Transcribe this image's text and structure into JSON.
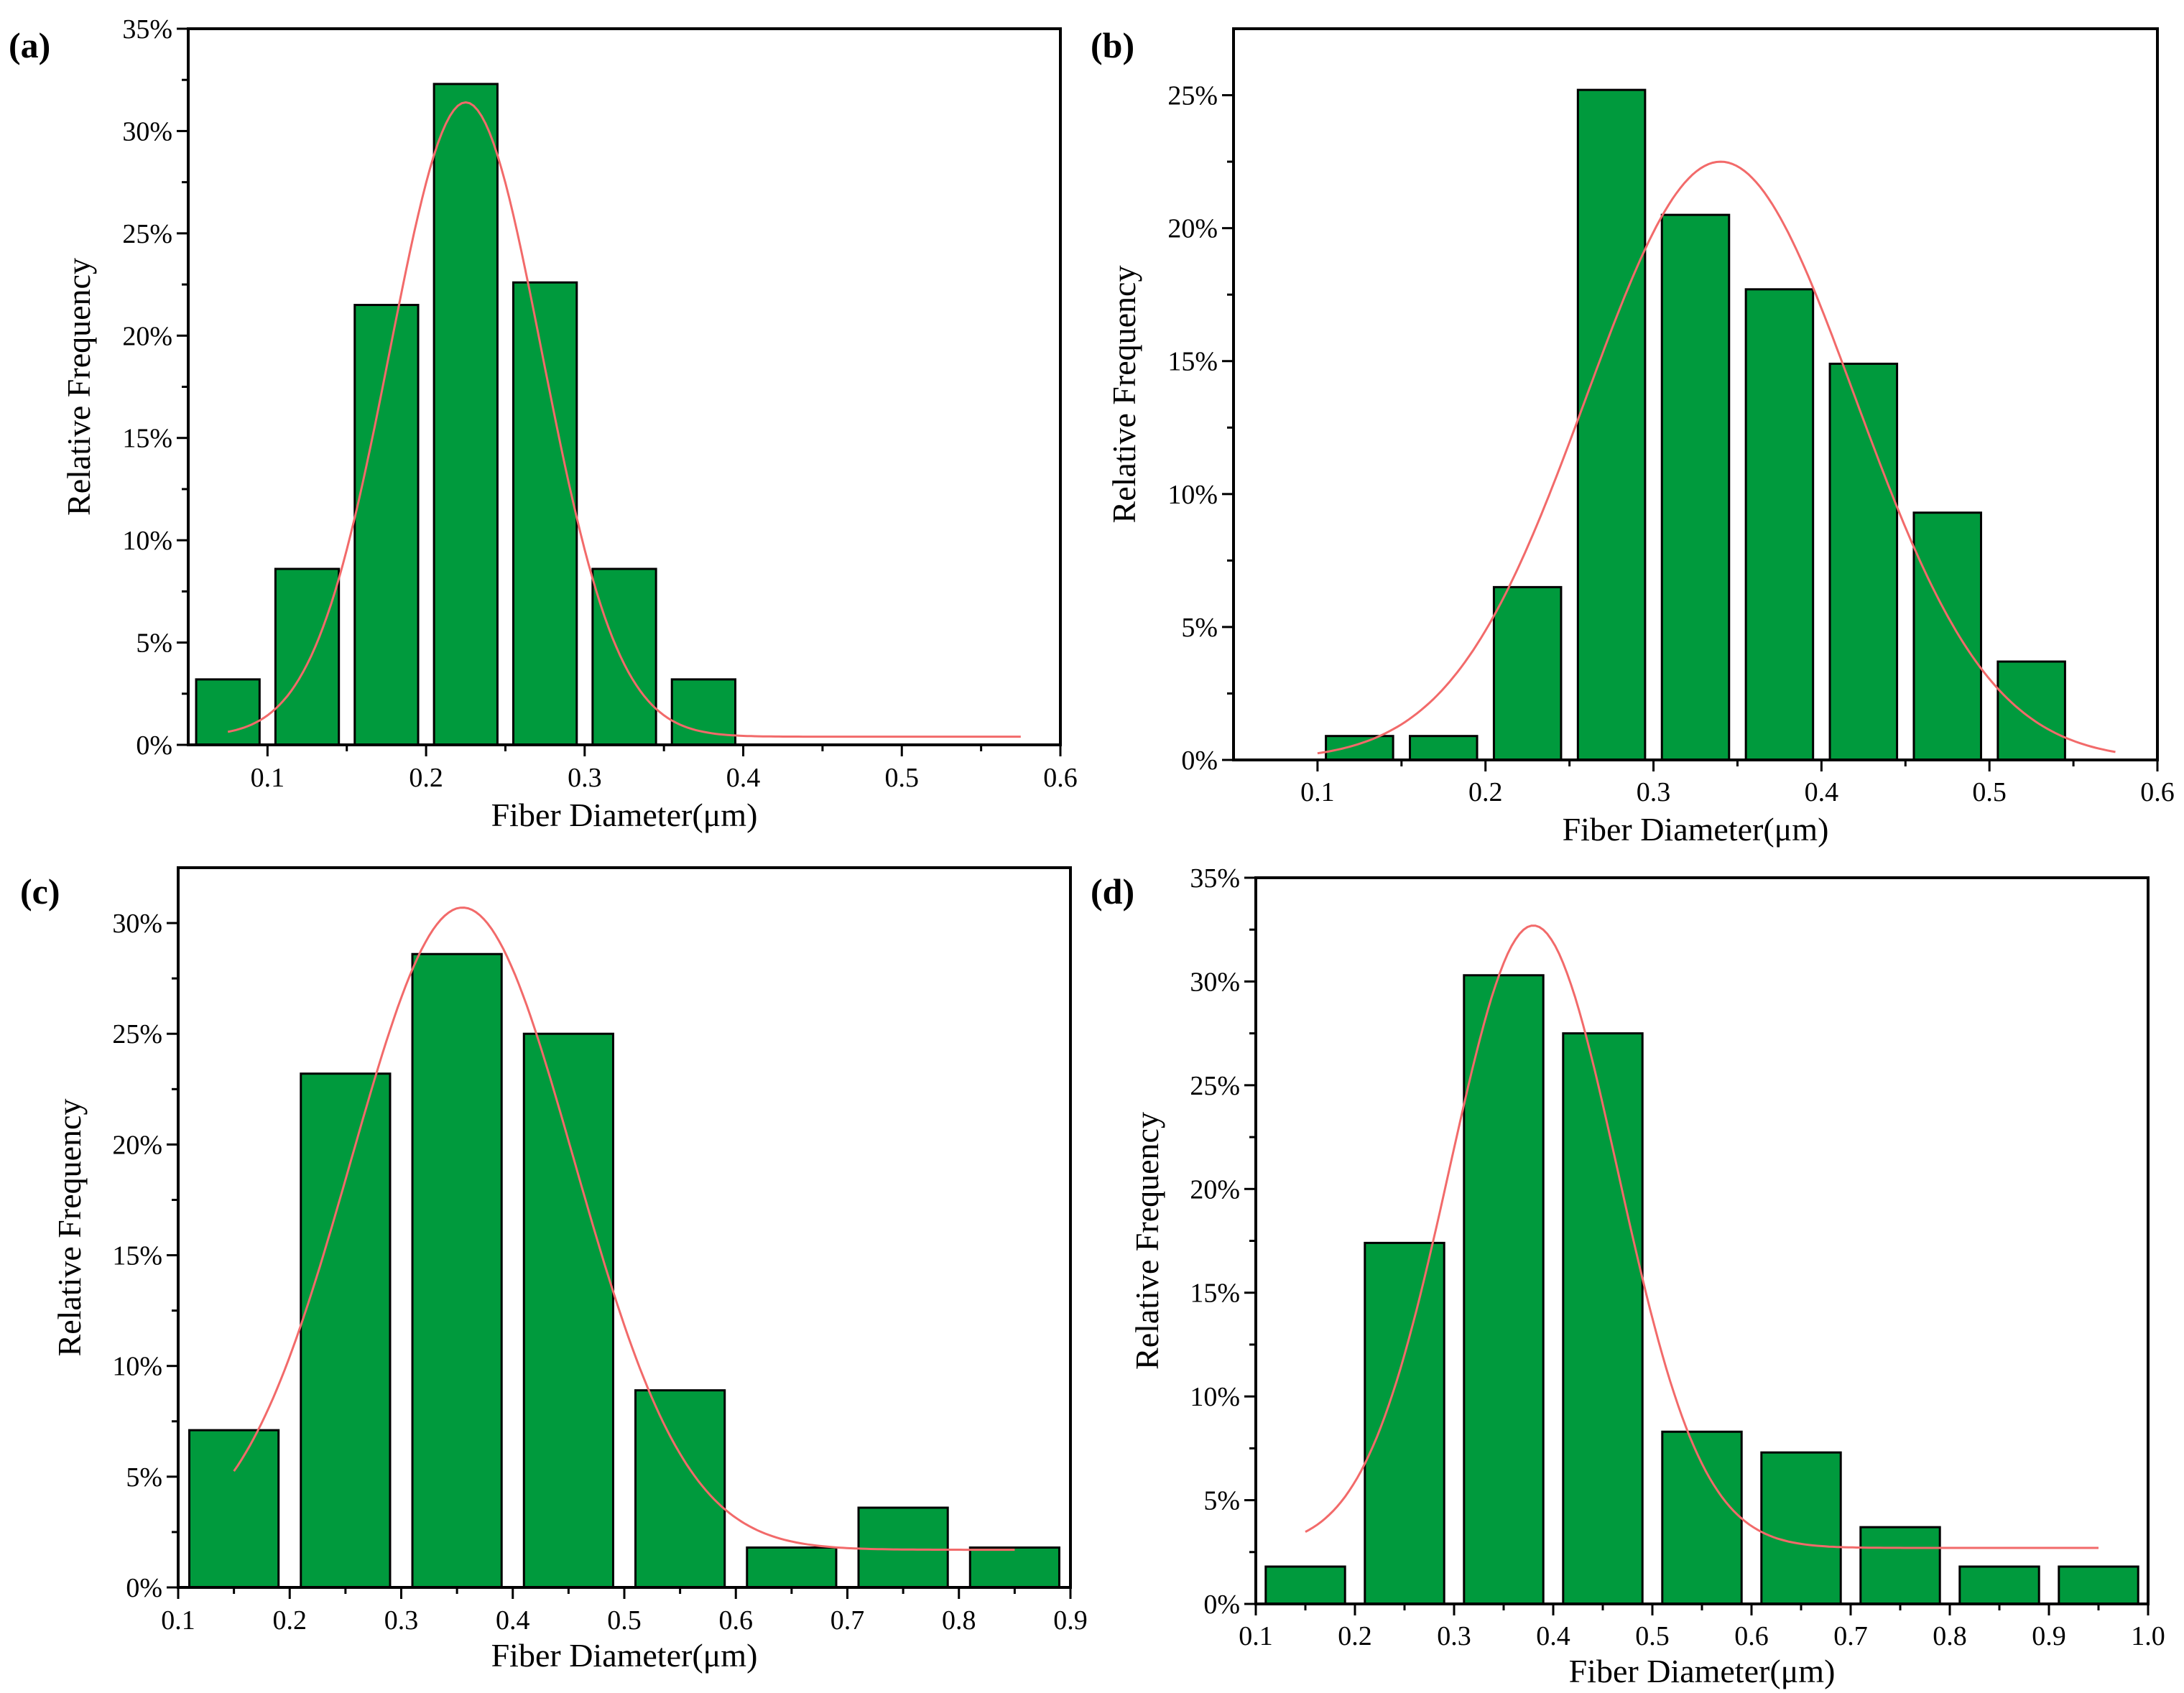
{
  "colors": {
    "bar": "#009a3d",
    "bar_stroke": "#000000",
    "fit_curve": "#f26a6a",
    "axis": "#000000"
  },
  "chart_data": [
    {
      "panel": "(a)",
      "type": "bar",
      "xlabel": "Fiber Diameter(μm)",
      "ylabel": "Relative Frequency",
      "xlim": [
        0.05,
        0.6
      ],
      "ylim": [
        0,
        35
      ],
      "xticks": [
        0.1,
        0.2,
        0.3,
        0.4,
        0.5,
        0.6
      ],
      "xtick_labels": [
        "0.1",
        "0.2",
        "0.3",
        "0.4",
        "0.5",
        "0.6"
      ],
      "yticks": [
        0,
        5,
        10,
        15,
        20,
        25,
        30,
        35
      ],
      "ytick_labels": [
        "0%",
        "5%",
        "10%",
        "15%",
        "20%",
        "25%",
        "30%",
        "35%"
      ],
      "bar_centers": [
        0.075,
        0.125,
        0.175,
        0.225,
        0.275,
        0.325,
        0.375
      ],
      "bar_width": 0.04,
      "values": [
        3.2,
        8.6,
        21.5,
        32.3,
        22.6,
        8.6,
        3.2
      ],
      "fit": {
        "kind": "gaussian",
        "baseline": 0.4,
        "amplitude": 31.0,
        "mean": 0.225,
        "sigma": 0.048,
        "x_range": [
          0.075,
          0.575
        ]
      }
    },
    {
      "panel": "(b)",
      "type": "bar",
      "xlabel": "Fiber Diameter(μm)",
      "ylabel": "Relative Frequency",
      "xlim": [
        0.05,
        0.6
      ],
      "ylim": [
        0,
        27.5
      ],
      "xticks": [
        0.1,
        0.2,
        0.3,
        0.4,
        0.5,
        0.6
      ],
      "xtick_labels": [
        "0.1",
        "0.2",
        "0.3",
        "0.4",
        "0.5",
        "0.6"
      ],
      "yticks": [
        0,
        5,
        10,
        15,
        20,
        25
      ],
      "ytick_labels": [
        "0%",
        "5%",
        "10%",
        "15%",
        "20%",
        "25%"
      ],
      "bar_centers": [
        0.125,
        0.175,
        0.225,
        0.275,
        0.325,
        0.375,
        0.425,
        0.475,
        0.525
      ],
      "bar_width": 0.04,
      "values": [
        0.9,
        0.9,
        6.5,
        25.2,
        20.5,
        17.7,
        14.9,
        9.3,
        3.7
      ],
      "fit": {
        "kind": "gaussian",
        "baseline": 0,
        "amplitude": 22.5,
        "mean": 0.34,
        "sigma": 0.08,
        "x_range": [
          0.1,
          0.575
        ]
      }
    },
    {
      "panel": "(c)",
      "type": "bar",
      "xlabel": "Fiber Diameter(μm)",
      "ylabel": "Relative Frequency",
      "xlim": [
        0.1,
        0.9
      ],
      "ylim": [
        0,
        32.5
      ],
      "xticks": [
        0.1,
        0.2,
        0.3,
        0.4,
        0.5,
        0.6,
        0.7,
        0.8,
        0.9
      ],
      "xtick_labels": [
        "0.1",
        "0.2",
        "0.3",
        "0.4",
        "0.5",
        "0.6",
        "0.7",
        "0.8",
        "0.9"
      ],
      "yticks": [
        0,
        5,
        10,
        15,
        20,
        25,
        30
      ],
      "ytick_labels": [
        "0%",
        "5%",
        "10%",
        "15%",
        "20%",
        "25%",
        "30%"
      ],
      "bar_centers": [
        0.15,
        0.25,
        0.35,
        0.45,
        0.55,
        0.65,
        0.75,
        0.85
      ],
      "bar_width": 0.08,
      "values": [
        7.1,
        23.2,
        28.6,
        25.0,
        8.9,
        1.8,
        3.6,
        1.8
      ],
      "fit": {
        "kind": "gaussian",
        "baseline": 1.7,
        "amplitude": 29.0,
        "mean": 0.355,
        "sigma": 0.1,
        "x_range": [
          0.15,
          0.85
        ]
      }
    },
    {
      "panel": "(d)",
      "type": "bar",
      "xlabel": "Fiber Diameter(μm)",
      "ylabel": "Relative Frequency",
      "xlim": [
        0.1,
        1.0
      ],
      "ylim": [
        0,
        35
      ],
      "xticks": [
        0.1,
        0.2,
        0.3,
        0.4,
        0.5,
        0.6,
        0.7,
        0.8,
        0.9,
        1.0
      ],
      "xtick_labels": [
        "0.1",
        "0.2",
        "0.3",
        "0.4",
        "0.5",
        "0.6",
        "0.7",
        "0.8",
        "0.9",
        "1.0"
      ],
      "yticks": [
        0,
        5,
        10,
        15,
        20,
        25,
        30,
        35
      ],
      "ytick_labels": [
        "0%",
        "5%",
        "10%",
        "15%",
        "20%",
        "25%",
        "30%",
        "35%"
      ],
      "bar_centers": [
        0.15,
        0.25,
        0.35,
        0.45,
        0.55,
        0.65,
        0.75,
        0.85,
        0.95
      ],
      "bar_width": 0.08,
      "values": [
        1.8,
        17.4,
        30.3,
        27.5,
        8.3,
        7.3,
        3.7,
        1.8,
        1.8
      ],
      "fit": {
        "kind": "gaussian",
        "baseline": 2.7,
        "amplitude": 30.0,
        "mean": 0.38,
        "sigma": 0.085,
        "x_range": [
          0.15,
          0.95
        ]
      }
    }
  ]
}
